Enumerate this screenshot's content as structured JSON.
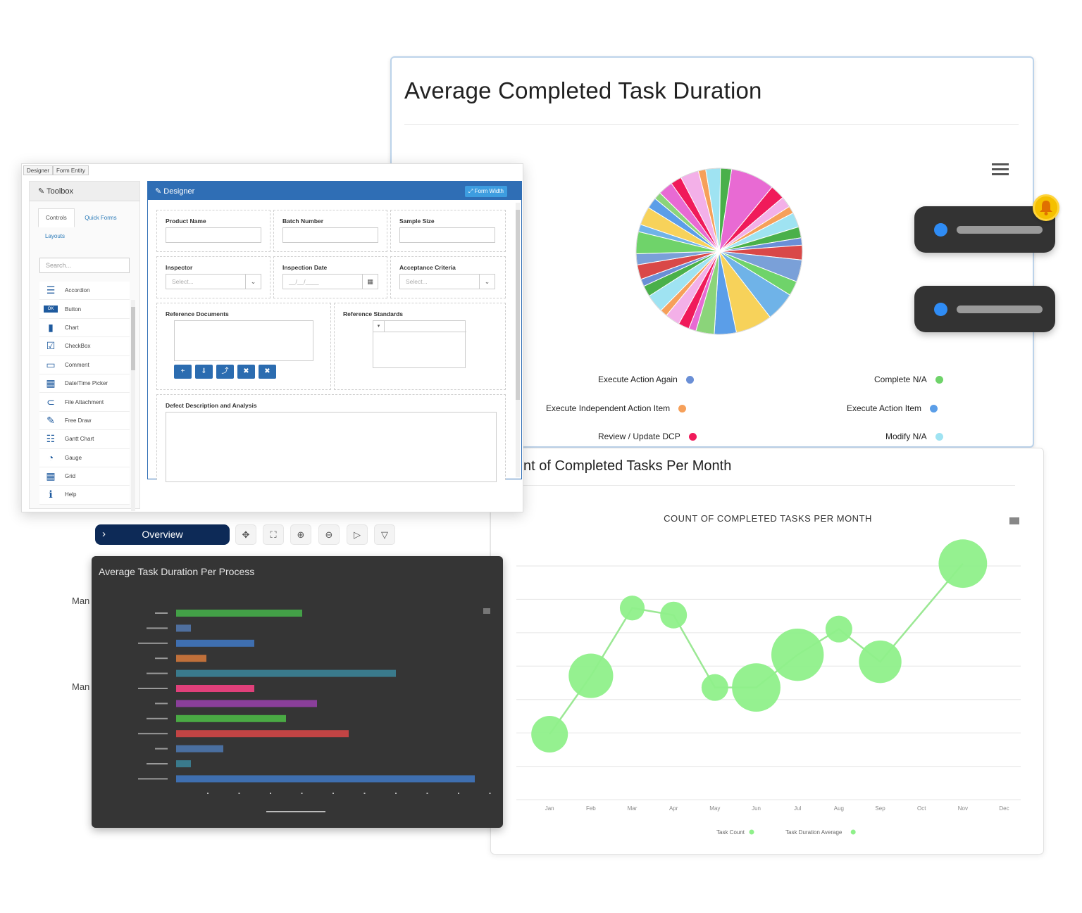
{
  "pie_card": {
    "title": "Average Completed Task Duration",
    "legend": [
      {
        "label": "Execute Action Again",
        "color": "#6a8fd6"
      },
      {
        "label": "Complete N/A",
        "color": "#6fd36a"
      },
      {
        "label": "Execute Independent Action Item",
        "color": "#f6a05a"
      },
      {
        "label": "Execute Action Item",
        "color": "#5b9ee8"
      },
      {
        "label": "Review / Update DCP",
        "color": "#f01a5a"
      },
      {
        "label": "Modify N/A",
        "color": "#9fe3f2"
      }
    ]
  },
  "line_card": {
    "title": "nt of Completed Tasks Per Month",
    "chart_title": "COUNT OF COMPLETED TASKS PER MONTH",
    "legend": [
      "Task Count",
      "Task Duration Average"
    ]
  },
  "chart_data": {
    "type": "scatter",
    "x": [
      "Jan",
      "Feb",
      "Mar",
      "Apr",
      "May",
      "Jun",
      "Jul",
      "Aug",
      "Sep",
      "Oct",
      "Nov",
      "Dec"
    ],
    "series": [
      {
        "values": [
          2.8,
          5.3,
          8.2,
          7.9,
          4.8,
          4.8,
          6.2,
          7.3,
          5.9,
          10.1
        ]
      },
      {
        "values": [
          1.0,
          1.4,
          0.4,
          0.5,
          0.5,
          1.6,
          1.8,
          0.5,
          1.3,
          1.6
        ]
      }
    ],
    "point_x": [
      1,
      2,
      3,
      4,
      5,
      6,
      7,
      8,
      9,
      11
    ],
    "ylim": [
      0,
      10
    ]
  },
  "designer": {
    "tabs": [
      "Designer",
      "Form Entity"
    ],
    "toolbox_title": "Toolbox",
    "toolbox_tabs": [
      "Controls",
      "Quick Forms",
      "Layouts"
    ],
    "search_placeholder": "Search...",
    "controls": [
      {
        "label": "Accordion",
        "icon": "accordion-icon",
        "glyph": "☰"
      },
      {
        "label": "Button",
        "icon": "button-icon",
        "glyph": "OK"
      },
      {
        "label": "Chart",
        "icon": "chart-icon",
        "glyph": "▮"
      },
      {
        "label": "CheckBox",
        "icon": "checkbox-icon",
        "glyph": "☑"
      },
      {
        "label": "Comment",
        "icon": "comment-icon",
        "glyph": "▭"
      },
      {
        "label": "Date/Time Picker",
        "icon": "calendar-icon",
        "glyph": "▦"
      },
      {
        "label": "File Attachment",
        "icon": "paperclip-icon",
        "glyph": "⊂"
      },
      {
        "label": "Free Draw",
        "icon": "pencil-icon",
        "glyph": "✎"
      },
      {
        "label": "Gantt Chart",
        "icon": "gantt-icon",
        "glyph": "☷"
      },
      {
        "label": "Gauge",
        "icon": "gauge-icon",
        "glyph": "◔"
      },
      {
        "label": "Grid",
        "icon": "grid-icon",
        "glyph": "▦"
      },
      {
        "label": "Help",
        "icon": "info-icon",
        "glyph": "ℹ"
      }
    ],
    "panel_title": "Designer",
    "form_width_label": "Form Width",
    "fields": {
      "product_name": "Product Name",
      "batch_number": "Batch Number",
      "sample_size": "Sample Size",
      "inspector": "Inspector",
      "inspector_placeholder": "Select...",
      "inspection_date": "Inspection Date",
      "date_placeholder": "__/__/____",
      "acceptance_criteria": "Acceptance Criteria",
      "acceptance_placeholder": "Select...",
      "reference_documents": "Reference Documents",
      "reference_standards": "Reference Standards",
      "defect_description": "Defect Description and Analysis"
    }
  },
  "overview": {
    "button_label": "Overview",
    "side_labels": [
      "Man",
      "Man"
    ]
  },
  "dark_chart": {
    "title": "Average Task Duration Per Process",
    "bars": [
      {
        "value": 179,
        "color": "#43a047"
      },
      {
        "value": 21,
        "color": "#4f6f9e"
      },
      {
        "value": 111,
        "color": "#3f6fb0"
      },
      {
        "value": 43,
        "color": "#c0703a"
      },
      {
        "value": 312,
        "color": "#3a7a8c"
      },
      {
        "value": 111,
        "color": "#e0407a"
      },
      {
        "value": 200,
        "color": "#8a3f9a"
      },
      {
        "value": 156,
        "color": "#4aaa44"
      },
      {
        "value": 245,
        "color": "#c24444"
      },
      {
        "value": 67,
        "color": "#4a6fa0"
      },
      {
        "value": 21,
        "color": "#3a7a8c"
      },
      {
        "value": 424,
        "color": "#3f6fb0"
      }
    ],
    "xmax": 440
  }
}
